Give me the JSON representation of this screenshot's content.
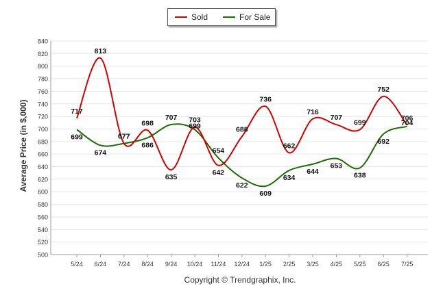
{
  "legend": {
    "sold_label": "Sold",
    "for_sale_label": "For Sale"
  },
  "copyright": "Copyright © Trendgraphix, Inc.",
  "colors": {
    "sold": "#d40000",
    "for_sale": "#1a6b00"
  },
  "chart_data": {
    "type": "line",
    "categories": [
      "5/24",
      "6/24",
      "7/24",
      "8/24",
      "9/24",
      "10/24",
      "11/24",
      "12/24",
      "1/25",
      "2/25",
      "3/25",
      "4/25",
      "5/25",
      "6/25",
      "7/25"
    ],
    "series": [
      {
        "name": "Sold",
        "values": [
          717,
          813,
          677,
          698,
          635,
          703,
          642,
          688,
          736,
          662,
          716,
          707,
          699,
          752,
          706
        ]
      },
      {
        "name": "For Sale",
        "values": [
          699,
          674,
          677,
          686,
          707,
          699,
          654,
          622,
          609,
          634,
          644,
          653,
          638,
          692,
          704
        ]
      }
    ],
    "xlabel": "",
    "ylabel": "Average Price (in $,000)",
    "ylim": [
      500,
      840
    ],
    "yticks": [
      500,
      520,
      540,
      560,
      580,
      600,
      620,
      640,
      660,
      680,
      700,
      720,
      740,
      760,
      780,
      800,
      820,
      840
    ],
    "grid": true,
    "legend_position": "top-center",
    "curve": "smooth"
  }
}
